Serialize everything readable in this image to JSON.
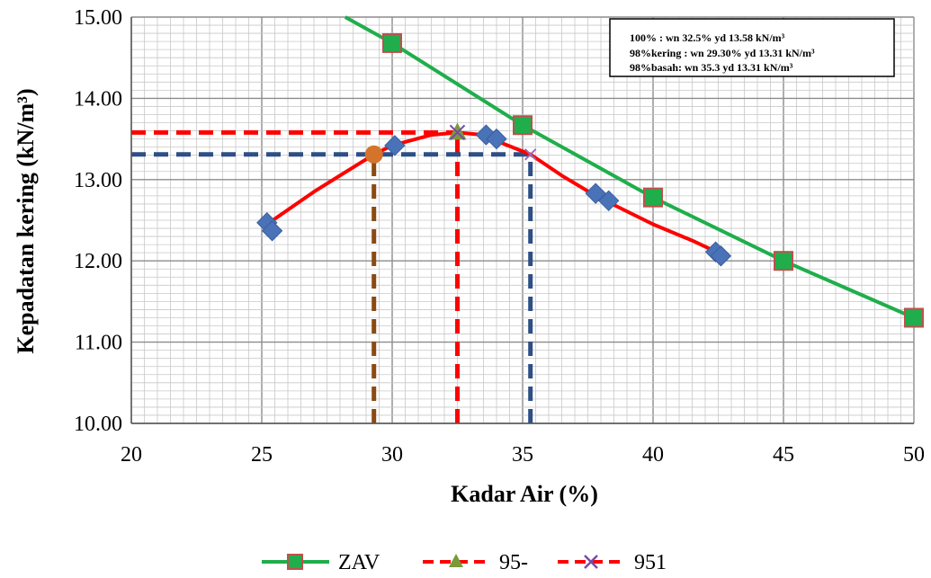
{
  "chart_data": {
    "type": "line",
    "xlabel": "Kadar Air (%)",
    "ylabel": "Kepadatan kering (kN/m³)",
    "xlim": [
      20,
      50
    ],
    "ylim": [
      10,
      15
    ],
    "x_ticks": [
      "20",
      "25",
      "30",
      "35",
      "40",
      "45",
      "50"
    ],
    "y_ticks": [
      "10.00",
      "11.00",
      "12.00",
      "13.00",
      "14.00",
      "15.00"
    ],
    "grid": true,
    "annotation_lines": [
      "100%  : wn 32.5% yd 13.58 kN/m³",
      "98%kering :  wn 29.30%  yd  13.31 kN/m³",
      "98%basah: wn 35.3 yd 13.31 kN/m³"
    ],
    "zav": {
      "name": "ZAV",
      "points": [
        [
          30,
          14.68
        ],
        [
          35,
          13.67
        ],
        [
          40,
          12.78
        ],
        [
          45,
          12.0
        ],
        [
          50,
          11.3
        ]
      ],
      "line_start": [
        28.2,
        15.0
      ],
      "color": "#1fae4b",
      "marker_color": "#1fae4b"
    },
    "compaction_curve": {
      "color": "#ff0000",
      "line": [
        [
          25.2,
          12.45
        ],
        [
          27.0,
          12.85
        ],
        [
          29.3,
          13.31
        ],
        [
          30.0,
          13.42
        ],
        [
          31.5,
          13.55
        ],
        [
          32.5,
          13.58
        ],
        [
          33.5,
          13.55
        ],
        [
          34.2,
          13.45
        ],
        [
          35.3,
          13.31
        ],
        [
          36.5,
          13.05
        ],
        [
          37.8,
          12.8
        ],
        [
          38.3,
          12.72
        ],
        [
          40.0,
          12.45
        ],
        [
          41.5,
          12.25
        ],
        [
          42.5,
          12.1
        ]
      ],
      "markers": [
        [
          25.2,
          12.47
        ],
        [
          25.4,
          12.37
        ],
        [
          30.1,
          13.42
        ],
        [
          33.6,
          13.55
        ],
        [
          34.0,
          13.5
        ],
        [
          37.8,
          12.83
        ],
        [
          38.3,
          12.74
        ],
        [
          42.4,
          12.11
        ],
        [
          42.6,
          12.06
        ]
      ],
      "marker_color": "#4a72b8"
    },
    "point_100": {
      "x": 32.5,
      "y": 13.58,
      "color": "#7a9a3a"
    },
    "point_98_kering": {
      "x": 29.3,
      "y": 13.31,
      "color": "#d4742a"
    },
    "point_98_basah": {
      "x": 35.3,
      "y": 13.31,
      "color": "#9a6ab8"
    },
    "guide_lines": [
      {
        "type": "h",
        "y": 13.58,
        "x_from": 20,
        "x_to": 32.5,
        "color": "#ff0000"
      },
      {
        "type": "v",
        "x": 32.5,
        "y_from": 10,
        "y_to": 13.58,
        "color": "#ff0000"
      },
      {
        "type": "h",
        "y": 13.31,
        "x_from": 20,
        "x_to": 35.3,
        "color": "#2e4f86"
      },
      {
        "type": "v",
        "x": 35.3,
        "y_from": 10,
        "y_to": 13.31,
        "color": "#2e4f86"
      },
      {
        "type": "v",
        "x": 29.3,
        "y_from": 10,
        "y_to": 13.31,
        "color": "#8b4a12"
      }
    ],
    "legend": [
      {
        "label": "ZAV",
        "line_color": "#1fae4b",
        "line_style": "solid",
        "marker": "square",
        "marker_color": "#1fae4b"
      },
      {
        "label": "95-",
        "line_color": "#ff0000",
        "line_style": "dashed",
        "marker": "triangle",
        "marker_color": "#7a9a3a"
      },
      {
        "label": "951",
        "line_color": "#ff0000",
        "line_style": "dashed",
        "marker": "x",
        "marker_color": "#7a4aa8"
      }
    ],
    "legend_position": "bottom"
  }
}
